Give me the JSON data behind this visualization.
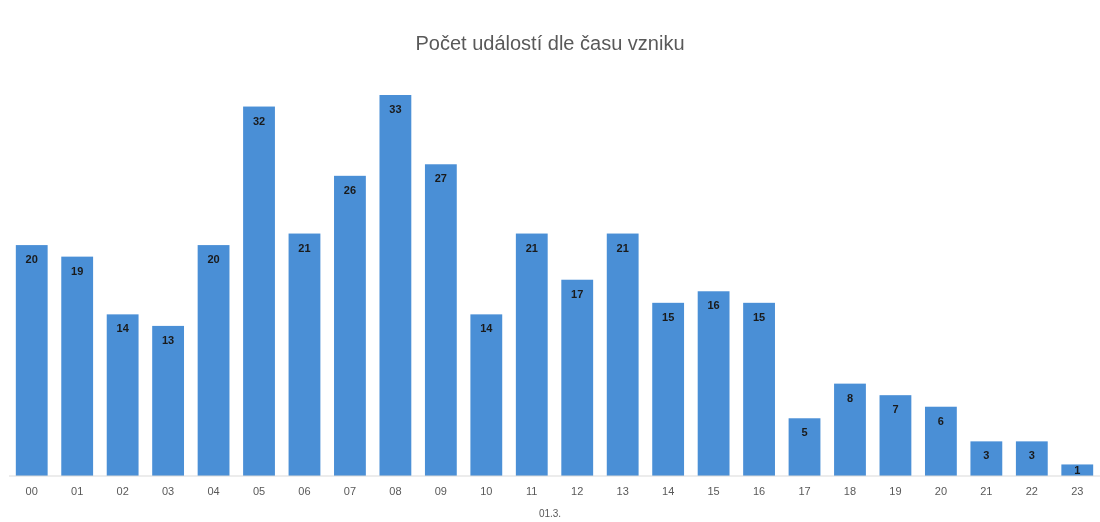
{
  "chart_data": {
    "type": "bar",
    "title": "Počet událostí dle času vzniku",
    "xlabel": "01.3.",
    "categories": [
      "00",
      "01",
      "02",
      "03",
      "04",
      "05",
      "06",
      "07",
      "08",
      "09",
      "10",
      "11",
      "12",
      "13",
      "14",
      "15",
      "16",
      "17",
      "18",
      "19",
      "20",
      "21",
      "22",
      "23"
    ],
    "values": [
      20,
      19,
      14,
      13,
      20,
      32,
      21,
      26,
      33,
      27,
      14,
      21,
      17,
      21,
      15,
      16,
      15,
      5,
      8,
      7,
      6,
      3,
      3,
      1
    ],
    "color": "#4a8fd6",
    "data_labels": true
  }
}
